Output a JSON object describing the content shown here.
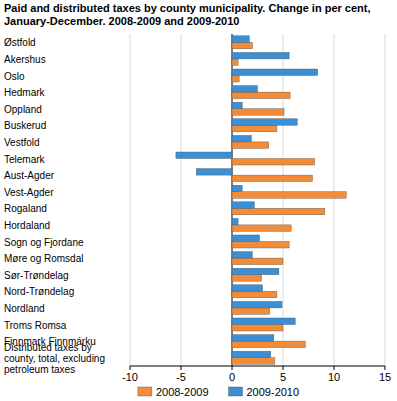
{
  "chart_data": {
    "type": "bar",
    "orientation": "horizontal",
    "title": "Paid and distributed taxes by county municipality. Change in per cent, January-December. 2008-2009 and 2009-2010",
    "categories": [
      "Østfold",
      "Akershus",
      "Oslo",
      "Hedmark",
      "Oppland",
      "Buskerud",
      "Vestfold",
      "Telemark",
      "Aust-Agder",
      "Vest-Agder",
      "Rogaland",
      "Hordaland",
      "Sogn og Fjordane",
      "Møre og Romsdal",
      "Sør-Trøndelag",
      "Nord-Trøndelag",
      "Nordland",
      "Troms Romsa",
      "Finnmark Finnmárku",
      "Distributed taxes by county, total, excluding petroleum taxes"
    ],
    "series": [
      {
        "name": "2008-2009",
        "color": "#f28c38",
        "values": [
          2.0,
          0.6,
          0.7,
          5.7,
          5.1,
          4.4,
          3.6,
          8.1,
          7.9,
          11.2,
          9.1,
          5.8,
          5.6,
          5.0,
          2.9,
          4.4,
          3.7,
          5.0,
          7.2,
          4.2
        ]
      },
      {
        "name": "2009-2010",
        "color": "#3a8fd6",
        "values": [
          1.7,
          5.6,
          8.4,
          2.5,
          1.0,
          6.4,
          1.9,
          -5.5,
          -3.5,
          1.0,
          2.2,
          0.6,
          2.7,
          2.0,
          4.6,
          3.0,
          4.9,
          6.2,
          4.1,
          3.8
        ]
      }
    ],
    "xlim": [
      -10,
      15
    ],
    "xticks": [
      -10,
      -5,
      0,
      5,
      10,
      15
    ],
    "grid": true,
    "legend": "bottom"
  }
}
